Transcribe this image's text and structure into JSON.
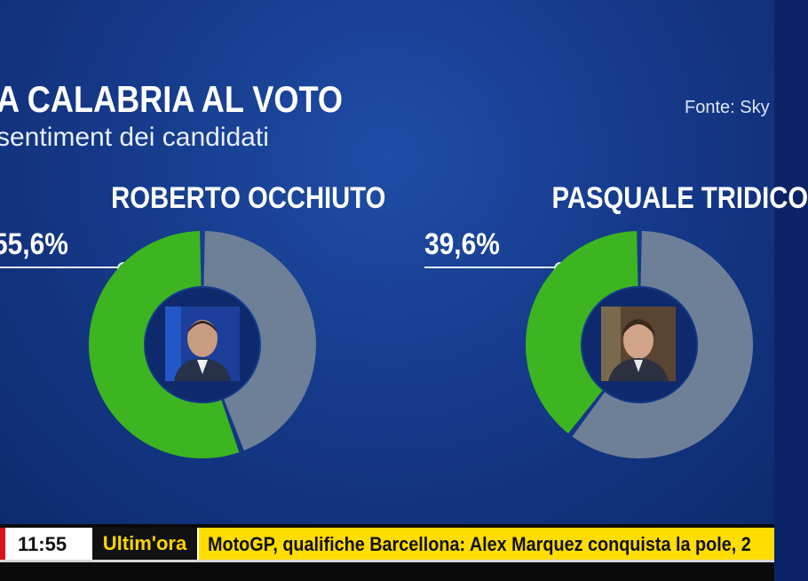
{
  "header": {
    "title": "A CALABRIA AL VOTO",
    "subtitle": "sentiment dei candidati",
    "source": "Fonte: Sky"
  },
  "colors": {
    "positive": "#3cb521",
    "remainder": "#6e7f98",
    "background": "#163b8c",
    "ticker_yellow": "#ffdd00"
  },
  "chart_data": [
    {
      "type": "pie",
      "title": "ROBERTO OCCHIUTO",
      "label": "55,6%",
      "values": [
        55.6,
        44.4
      ],
      "categories": [
        "",
        ""
      ]
    },
    {
      "type": "pie",
      "title": "PASQUALE TRIDICO",
      "label": "39,6%",
      "values": [
        39.6,
        60.4
      ],
      "categories": [
        "",
        ""
      ]
    }
  ],
  "ticker": {
    "time": "11:55",
    "tag": "Ultim'ora",
    "headline": "MotoGP, qualifiche Barcellona: Alex Marquez conquista la pole, 2"
  },
  "icons": {
    "avatar_left": "person-photo-icon",
    "avatar_right": "person-photo-icon"
  }
}
